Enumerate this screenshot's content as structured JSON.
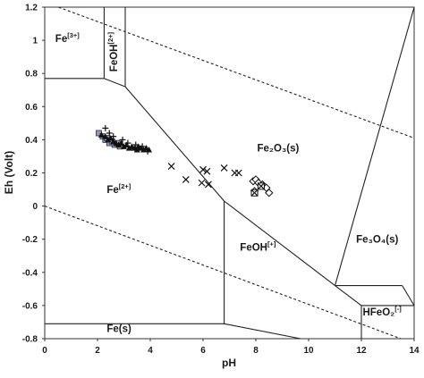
{
  "chart_data": {
    "type": "scatter",
    "title": "",
    "xlabel": "pH",
    "ylabel": "Eh (Volt)",
    "xlim": [
      0,
      14
    ],
    "ylim": [
      -0.8,
      1.2
    ],
    "x_ticks": [
      0,
      2,
      4,
      6,
      8,
      10,
      12,
      14
    ],
    "y_ticks": [
      1.2,
      1,
      0.8,
      0.6,
      0.4,
      0.2,
      0,
      -0.2,
      -0.4,
      -0.6,
      -0.8
    ],
    "grid": false,
    "regions": [
      {
        "label": "Fe",
        "superscript": "[3+]",
        "x": 0.4,
        "y": 0.99
      },
      {
        "label": "FeOH",
        "superscript": "[2+]",
        "x": 2.75,
        "y": 0.93,
        "rotation": -90
      },
      {
        "label": "Fe₂O₃(s)",
        "x": 8.05,
        "y": 0.33
      },
      {
        "label": "Fe",
        "superscript": "[2+]",
        "x": 2.35,
        "y": 0.08
      },
      {
        "label": "FeOH",
        "superscript": "[+]",
        "x": 7.4,
        "y": -0.27
      },
      {
        "label": "Fe₃O₄(s)",
        "x": 11.8,
        "y": -0.22
      },
      {
        "label": "HFeO₂",
        "superscript": "[-]",
        "x": 12.05,
        "y": -0.66
      },
      {
        "label": "Fe(s)",
        "x": 2.35,
        "y": -0.76
      }
    ],
    "boundaries": [
      {
        "name": "Fe3+/Fe2+",
        "points": [
          [
            0,
            0.77
          ],
          [
            2.25,
            0.77
          ]
        ]
      },
      {
        "name": "Fe3+/FeOH2+",
        "points": [
          [
            2.25,
            1.2
          ],
          [
            2.25,
            0.77
          ]
        ]
      },
      {
        "name": "FeOH2+/Fe2+",
        "points": [
          [
            2.25,
            0.77
          ],
          [
            3.05,
            0.72
          ]
        ]
      },
      {
        "name": "FeOH2+/Fe2O3",
        "points": [
          [
            3.05,
            1.2
          ],
          [
            3.05,
            0.72
          ]
        ]
      },
      {
        "name": "Fe2O3/Fe2+",
        "points": [
          [
            3.05,
            0.72
          ],
          [
            6.8,
            0.03
          ]
        ]
      },
      {
        "name": "Fe2O3/FeOH+",
        "points": [
          [
            6.8,
            0.03
          ],
          [
            11.0,
            -0.48
          ]
        ]
      },
      {
        "name": "Fe2O3/Fe3O4",
        "points": [
          [
            11.0,
            -0.48
          ],
          [
            14,
            1.2
          ]
        ]
      },
      {
        "name": "Fe2+/FeOH+",
        "points": [
          [
            6.8,
            0.03
          ],
          [
            6.8,
            -0.71
          ]
        ]
      },
      {
        "name": "Fe(s) upper",
        "points": [
          [
            0,
            -0.71
          ],
          [
            6.8,
            -0.71
          ]
        ]
      },
      {
        "name": "FeOH+/Fe3O4",
        "points": [
          [
            11.0,
            -0.48
          ],
          [
            12.0,
            -0.6
          ]
        ]
      },
      {
        "name": "FeOH+/HFeO2-",
        "points": [
          [
            12.0,
            -0.6
          ],
          [
            12.0,
            -0.8
          ]
        ]
      },
      {
        "name": "Fe3O4/HFeO2- top",
        "points": [
          [
            11.0,
            -0.48
          ],
          [
            13.55,
            -0.48
          ]
        ]
      },
      {
        "name": "Fe3O4/HFeO2- right",
        "points": [
          [
            13.55,
            -0.48
          ],
          [
            14,
            -0.6
          ]
        ]
      },
      {
        "name": "Fe3O4/HFeO2-",
        "points": [
          [
            12.0,
            -0.6
          ],
          [
            14,
            -0.6
          ]
        ]
      },
      {
        "name": "Fe(s)/FeOH+",
        "points": [
          [
            6.8,
            -0.71
          ],
          [
            9.7,
            -0.8
          ]
        ]
      }
    ],
    "water_limits": [
      {
        "name": "upper",
        "points": [
          [
            0,
            1.23
          ],
          [
            14,
            0.41
          ]
        ]
      },
      {
        "name": "lower",
        "points": [
          [
            0,
            0.0
          ],
          [
            14,
            -0.83
          ]
        ]
      }
    ],
    "series": [
      {
        "marker": "square",
        "points": [
          [
            2.05,
            0.44
          ],
          [
            2.2,
            0.42
          ],
          [
            2.3,
            0.4
          ],
          [
            2.45,
            0.38
          ],
          [
            2.35,
            0.41
          ],
          [
            2.55,
            0.39
          ],
          [
            2.65,
            0.37
          ],
          [
            2.75,
            0.38
          ],
          [
            2.85,
            0.36
          ]
        ]
      },
      {
        "marker": "triangle",
        "points": [
          [
            2.15,
            0.43
          ],
          [
            2.3,
            0.42
          ],
          [
            2.4,
            0.4
          ],
          [
            2.5,
            0.41
          ],
          [
            2.6,
            0.39
          ],
          [
            2.7,
            0.38
          ],
          [
            2.8,
            0.37
          ],
          [
            2.9,
            0.38
          ],
          [
            3.0,
            0.36
          ],
          [
            3.1,
            0.37
          ],
          [
            3.2,
            0.35
          ],
          [
            3.3,
            0.36
          ],
          [
            3.4,
            0.35
          ],
          [
            3.5,
            0.34
          ],
          [
            3.55,
            0.36
          ],
          [
            3.65,
            0.35
          ],
          [
            3.75,
            0.34
          ],
          [
            3.85,
            0.35
          ],
          [
            3.95,
            0.34
          ]
        ]
      },
      {
        "marker": "plus",
        "points": [
          [
            2.3,
            0.47
          ],
          [
            2.45,
            0.44
          ],
          [
            2.6,
            0.42
          ],
          [
            2.95,
            0.4
          ],
          [
            3.15,
            0.38
          ],
          [
            3.45,
            0.37
          ],
          [
            3.7,
            0.36
          ],
          [
            3.9,
            0.33
          ]
        ]
      },
      {
        "marker": "cross",
        "points": [
          [
            4.8,
            0.24
          ],
          [
            5.35,
            0.16
          ],
          [
            5.95,
            0.14
          ],
          [
            6.0,
            0.22
          ],
          [
            6.15,
            0.21
          ],
          [
            6.2,
            0.13
          ],
          [
            6.8,
            0.23
          ],
          [
            7.2,
            0.2
          ],
          [
            7.35,
            0.2
          ]
        ]
      },
      {
        "marker": "diamond",
        "points": [
          [
            7.9,
            0.15
          ],
          [
            8.0,
            0.16
          ],
          [
            8.1,
            0.14
          ],
          [
            8.25,
            0.13
          ],
          [
            8.4,
            0.11
          ],
          [
            8.5,
            0.08
          ],
          [
            7.95,
            0.09
          ]
        ]
      },
      {
        "marker": "boxed-x",
        "points": [
          [
            7.95,
            0.08
          ],
          [
            8.2,
            0.12
          ]
        ]
      }
    ]
  }
}
